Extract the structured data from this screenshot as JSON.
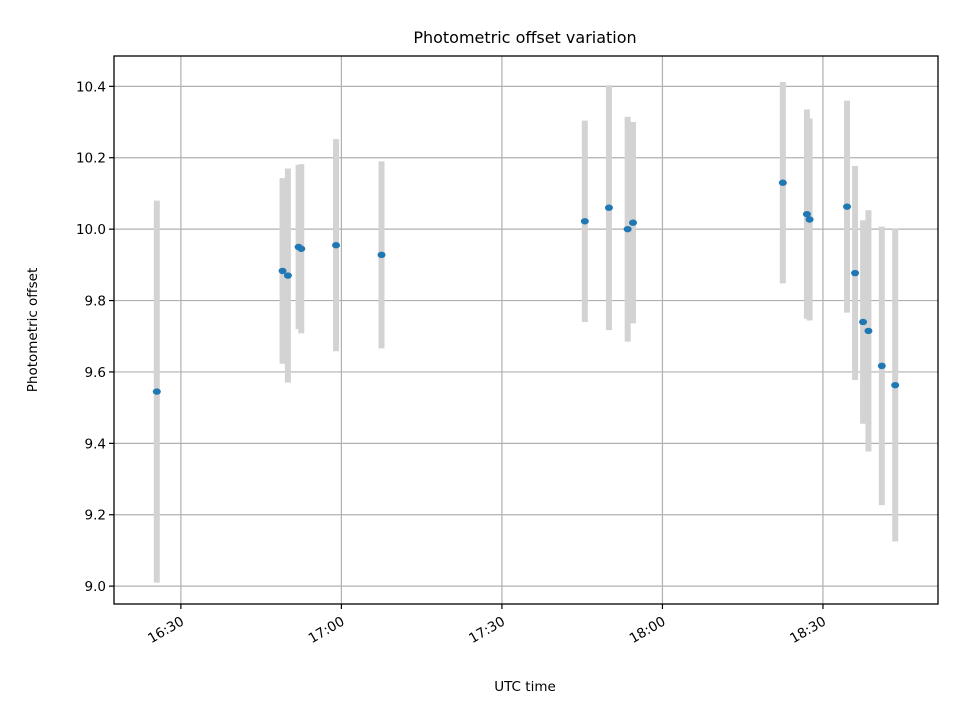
{
  "chart_data": {
    "type": "scatter",
    "title": "Photometric offset variation",
    "xlabel": "UTC time",
    "ylabel": "Photometric offset",
    "x_ticks": [
      "16:30",
      "17:00",
      "17:30",
      "18:00",
      "18:30"
    ],
    "x_tick_values": [
      "16:30",
      "17:00",
      "17:30",
      "18:00",
      "18:30"
    ],
    "xlim": [
      "16:17:30",
      "18:51:30"
    ],
    "y_ticks": [
      "9.0",
      "9.2",
      "9.4",
      "9.6",
      "9.8",
      "10.0",
      "10.2",
      "10.4"
    ],
    "ylim": [
      8.95,
      10.485
    ],
    "grid": true,
    "error_bar_color": "#d3d3d3",
    "marker_color": "#1f77b4",
    "series": [
      {
        "points": [
          {
            "x": "16:25:30",
            "y": 9.545,
            "err": 0.535
          },
          {
            "x": "16:49:00",
            "y": 9.883,
            "err": 0.26
          },
          {
            "x": "16:50:00",
            "y": 9.87,
            "err": 0.3
          },
          {
            "x": "16:52:00",
            "y": 9.95,
            "err": 0.23
          },
          {
            "x": "16:52:30",
            "y": 9.945,
            "err": 0.237
          },
          {
            "x": "16:59:00",
            "y": 9.955,
            "err": 0.297
          },
          {
            "x": "17:07:30",
            "y": 9.928,
            "err": 0.262
          },
          {
            "x": "17:45:30",
            "y": 10.022,
            "err": 0.282
          },
          {
            "x": "17:50:00",
            "y": 10.06,
            "err": 0.343
          },
          {
            "x": "17:53:30",
            "y": 10.0,
            "err": 0.315
          },
          {
            "x": "17:54:30",
            "y": 10.018,
            "err": 0.282
          },
          {
            "x": "18:22:30",
            "y": 10.13,
            "err": 0.282
          },
          {
            "x": "18:27:00",
            "y": 10.042,
            "err": 0.293
          },
          {
            "x": "18:27:30",
            "y": 10.027,
            "err": 0.283
          },
          {
            "x": "18:34:30",
            "y": 10.063,
            "err": 0.297
          },
          {
            "x": "18:36:00",
            "y": 9.877,
            "err": 0.3
          },
          {
            "x": "18:37:30",
            "y": 9.74,
            "err": 0.285
          },
          {
            "x": "18:38:30",
            "y": 9.715,
            "err": 0.338
          },
          {
            "x": "18:41:00",
            "y": 9.617,
            "err": 0.39
          },
          {
            "x": "18:43:30",
            "y": 9.563,
            "err": 0.438
          }
        ]
      }
    ]
  }
}
